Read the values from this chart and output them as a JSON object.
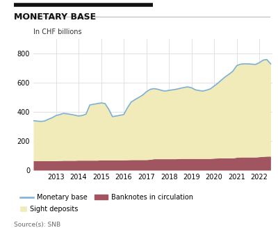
{
  "title": "MONETARY BASE",
  "ylabel": "In CHF billions",
  "source": "Source(s): SNB",
  "background_color": "#ffffff",
  "plot_bg_color": "#ffffff",
  "grid_color": "#dddddd",
  "years": [
    2012.0,
    2012.17,
    2012.33,
    2012.5,
    2012.67,
    2012.83,
    2013.0,
    2013.17,
    2013.33,
    2013.5,
    2013.67,
    2013.83,
    2014.0,
    2014.17,
    2014.33,
    2014.5,
    2014.67,
    2014.83,
    2015.0,
    2015.17,
    2015.33,
    2015.5,
    2015.67,
    2015.83,
    2016.0,
    2016.17,
    2016.33,
    2016.5,
    2016.67,
    2016.83,
    2017.0,
    2017.17,
    2017.33,
    2017.5,
    2017.67,
    2017.83,
    2018.0,
    2018.17,
    2018.33,
    2018.5,
    2018.67,
    2018.83,
    2019.0,
    2019.17,
    2019.33,
    2019.5,
    2019.67,
    2019.83,
    2020.0,
    2020.17,
    2020.33,
    2020.5,
    2020.67,
    2020.83,
    2021.0,
    2021.17,
    2021.33,
    2021.5,
    2021.67,
    2021.83,
    2022.0,
    2022.17,
    2022.33,
    2022.5
  ],
  "monetary_base": [
    340,
    337,
    335,
    338,
    350,
    360,
    375,
    382,
    390,
    387,
    383,
    378,
    372,
    376,
    385,
    448,
    453,
    457,
    462,
    458,
    420,
    368,
    372,
    377,
    382,
    430,
    468,
    485,
    500,
    515,
    538,
    555,
    560,
    556,
    548,
    543,
    548,
    552,
    556,
    562,
    568,
    572,
    566,
    552,
    547,
    543,
    550,
    558,
    578,
    598,
    620,
    642,
    660,
    680,
    718,
    728,
    730,
    730,
    728,
    726,
    738,
    756,
    760,
    730
  ],
  "banknotes": [
    65,
    65,
    65,
    65,
    65,
    65,
    65,
    66,
    67,
    67,
    67,
    67,
    68,
    68,
    68,
    68,
    68,
    68,
    70,
    70,
    70,
    70,
    70,
    70,
    70,
    71,
    72,
    72,
    72,
    72,
    72,
    74,
    78,
    78,
    78,
    78,
    78,
    78,
    78,
    80,
    80,
    80,
    80,
    80,
    80,
    80,
    80,
    80,
    82,
    83,
    84,
    84,
    84,
    84,
    88,
    90,
    90,
    90,
    90,
    90,
    92,
    94,
    96,
    96
  ],
  "sight_deposits": [
    275,
    272,
    270,
    273,
    285,
    295,
    310,
    316,
    323,
    320,
    316,
    311,
    304,
    308,
    317,
    380,
    385,
    389,
    392,
    388,
    350,
    298,
    302,
    307,
    312,
    359,
    396,
    413,
    428,
    443,
    466,
    481,
    482,
    478,
    470,
    465,
    470,
    474,
    478,
    482,
    488,
    492,
    486,
    472,
    467,
    463,
    470,
    478,
    496,
    515,
    536,
    558,
    576,
    596,
    630,
    638,
    640,
    640,
    638,
    636,
    646,
    662,
    664,
    634
  ],
  "monetary_base_color": "#7bafd4",
  "banknotes_color": "#a05560",
  "sight_deposits_color": "#f0ebb8",
  "ylim": [
    0,
    900
  ],
  "yticks": [
    0,
    200,
    400,
    600,
    800
  ],
  "xtick_years": [
    2013,
    2014,
    2015,
    2016,
    2017,
    2018,
    2019,
    2020,
    2021,
    2022
  ],
  "legend_monetary_base": "Monetary base",
  "legend_banknotes": "Banknotes in circulation",
  "legend_sight_deposits": "Sight deposits"
}
